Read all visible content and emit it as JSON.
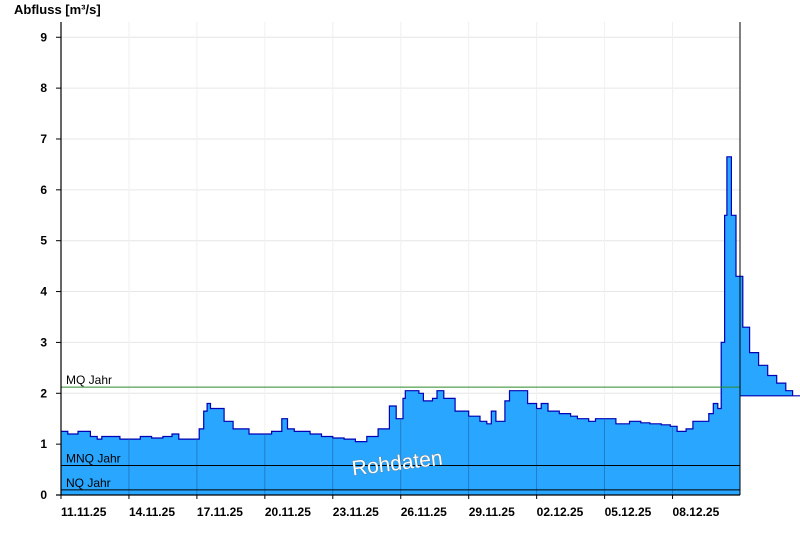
{
  "chart_data": {
    "type": "area",
    "ylabel": "Abfluss [m³/s]",
    "x_range": [
      "11.11.25",
      "13.12.25"
    ],
    "ylim": [
      0,
      9.3
    ],
    "yticks": [
      0,
      1,
      2,
      3,
      4,
      5,
      6,
      7,
      8,
      9
    ],
    "xticks": [
      "11.11.25",
      "14.11.25",
      "17.11.25",
      "20.11.25",
      "23.11.25",
      "26.11.25",
      "29.11.25",
      "02.12.25",
      "05.12.25",
      "08.12.25"
    ],
    "grid": true,
    "watermark": "Rohdaten",
    "colors": {
      "fill": "#29a6ff",
      "line": "#0000b4",
      "mq": "#2a8a2a",
      "mnq": "#000000",
      "nq": "#000000"
    },
    "reference_lines": [
      {
        "label": "MQ Jahr",
        "value": 2.12
      },
      {
        "label": "MNQ Jahr",
        "value": 0.58
      },
      {
        "label": "NQ Jahr",
        "value": 0.1
      }
    ],
    "series": [
      {
        "values": [
          [
            0.0,
            1.25
          ],
          [
            0.3,
            1.2
          ],
          [
            0.6,
            1.2
          ],
          [
            0.75,
            1.25
          ],
          [
            1.1,
            1.25
          ],
          [
            1.3,
            1.15
          ],
          [
            1.6,
            1.1
          ],
          [
            1.8,
            1.15
          ],
          [
            2.2,
            1.15
          ],
          [
            2.6,
            1.1
          ],
          [
            3.0,
            1.1
          ],
          [
            3.5,
            1.15
          ],
          [
            4.0,
            1.12
          ],
          [
            4.5,
            1.15
          ],
          [
            4.9,
            1.2
          ],
          [
            5.2,
            1.1
          ],
          [
            5.8,
            1.1
          ],
          [
            6.1,
            1.3
          ],
          [
            6.3,
            1.65
          ],
          [
            6.45,
            1.8
          ],
          [
            6.6,
            1.7
          ],
          [
            7.0,
            1.7
          ],
          [
            7.2,
            1.45
          ],
          [
            7.6,
            1.3
          ],
          [
            8.0,
            1.3
          ],
          [
            8.3,
            1.2
          ],
          [
            8.9,
            1.2
          ],
          [
            9.3,
            1.25
          ],
          [
            9.6,
            1.25
          ],
          [
            9.75,
            1.5
          ],
          [
            10.0,
            1.3
          ],
          [
            10.3,
            1.25
          ],
          [
            11.0,
            1.2
          ],
          [
            11.5,
            1.15
          ],
          [
            12.0,
            1.12
          ],
          [
            12.5,
            1.1
          ],
          [
            13.0,
            1.05
          ],
          [
            13.5,
            1.15
          ],
          [
            14.0,
            1.3
          ],
          [
            14.5,
            1.75
          ],
          [
            14.8,
            1.5
          ],
          [
            15.1,
            1.9
          ],
          [
            15.2,
            2.05
          ],
          [
            15.8,
            2.0
          ],
          [
            16.0,
            1.85
          ],
          [
            16.4,
            1.9
          ],
          [
            16.6,
            2.05
          ],
          [
            16.9,
            1.9
          ],
          [
            17.4,
            1.65
          ],
          [
            18.0,
            1.55
          ],
          [
            18.5,
            1.45
          ],
          [
            18.8,
            1.4
          ],
          [
            19.0,
            1.65
          ],
          [
            19.2,
            1.45
          ],
          [
            19.6,
            1.85
          ],
          [
            19.8,
            2.05
          ],
          [
            20.2,
            2.05
          ],
          [
            20.6,
            1.8
          ],
          [
            21.0,
            1.7
          ],
          [
            21.2,
            1.8
          ],
          [
            21.5,
            1.65
          ],
          [
            22.0,
            1.6
          ],
          [
            22.5,
            1.55
          ],
          [
            22.8,
            1.5
          ],
          [
            23.3,
            1.45
          ],
          [
            23.6,
            1.5
          ],
          [
            24.2,
            1.5
          ],
          [
            24.5,
            1.4
          ],
          [
            25.1,
            1.45
          ],
          [
            25.6,
            1.42
          ],
          [
            26.0,
            1.4
          ],
          [
            26.5,
            1.38
          ],
          [
            26.9,
            1.35
          ],
          [
            27.2,
            1.25
          ],
          [
            27.6,
            1.3
          ],
          [
            27.9,
            1.45
          ],
          [
            28.3,
            1.45
          ],
          [
            28.6,
            1.6
          ],
          [
            28.8,
            1.8
          ],
          [
            29.0,
            1.7
          ],
          [
            29.15,
            3.0
          ],
          [
            29.3,
            5.5
          ],
          [
            29.4,
            6.65
          ],
          [
            29.6,
            5.5
          ],
          [
            29.8,
            4.3
          ],
          [
            30.1,
            3.3
          ],
          [
            30.4,
            2.8
          ],
          [
            30.8,
            2.55
          ],
          [
            31.2,
            2.35
          ],
          [
            31.6,
            2.2
          ],
          [
            32.0,
            2.05
          ],
          [
            32.3,
            1.95
          ],
          [
            32.8,
            1.95
          ]
        ]
      }
    ]
  }
}
